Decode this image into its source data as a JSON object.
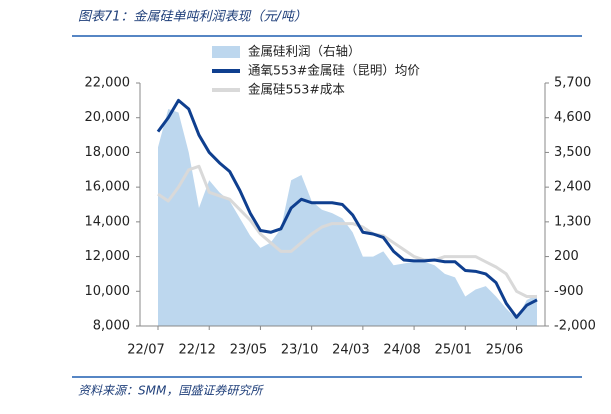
{
  "chart_data": {
    "type": "line",
    "title": "图表71：金属硅单吨利润表现（元/吨）",
    "source": "资料来源：SMM，国盛证券研究所",
    "categories": [
      "22/07",
      null,
      null,
      null,
      null,
      "22/12",
      null,
      null,
      null,
      null,
      "23/05",
      null,
      null,
      null,
      null,
      "23/10",
      null,
      null,
      null,
      null,
      "24/03",
      null,
      null,
      null,
      null,
      "24/08",
      null,
      null,
      null,
      null,
      "25/01",
      null,
      null,
      null,
      null,
      "25/06",
      null,
      null
    ],
    "series": [
      {
        "name": "金属硅利润（右轴）",
        "type": "area",
        "axis": "y2",
        "color": "#bdd7ee",
        "values": [
          3665,
          4875,
          4765,
          3500,
          1740,
          2620,
          2235,
          1960,
          1410,
          860,
          475,
          640,
          1080,
          2620,
          2785,
          1960,
          1685,
          1575,
          1410,
          970,
          200,
          200,
          365,
          -75,
          -20,
          35,
          35,
          -75,
          -350,
          -460,
          -1065,
          -845,
          -735,
          -1065,
          -1450,
          -1780,
          -1175,
          -1010
        ]
      },
      {
        "name": "通氧553#金属硅（昆明）均价",
        "type": "line",
        "color": "#0f3f8f",
        "values": [
          19200,
          20000,
          21000,
          20500,
          19000,
          18000,
          17400,
          16900,
          15800,
          14500,
          13500,
          13400,
          13600,
          14800,
          15300,
          15100,
          15100,
          15100,
          15000,
          14400,
          13400,
          13300,
          13100,
          12300,
          11800,
          11750,
          11750,
          11800,
          11700,
          11700,
          11200,
          11150,
          11000,
          10500,
          9300,
          8500,
          9200,
          9500
        ]
      },
      {
        "name": "金属硅553#成本",
        "type": "line",
        "color": "#d9d9d9",
        "values": [
          15600,
          15200,
          16000,
          17000,
          17200,
          15700,
          15500,
          15300,
          14700,
          14100,
          13300,
          12800,
          12300,
          12300,
          12800,
          13300,
          13700,
          13900,
          13900,
          13900,
          13700,
          13300,
          13200,
          12800,
          12400,
          12000,
          11800,
          11800,
          12000,
          12000,
          12000,
          12000,
          11700,
          11400,
          11000,
          10000,
          9700,
          9700
        ]
      }
    ],
    "ylim": [
      8000,
      22000
    ],
    "yticks": [
      {
        "value": 8000,
        "label": "8,000"
      },
      {
        "value": 10000,
        "label": "10,000"
      },
      {
        "value": 12000,
        "label": "12,000"
      },
      {
        "value": 14000,
        "label": "14,000"
      },
      {
        "value": 16000,
        "label": "16,000"
      },
      {
        "value": 18000,
        "label": "18,000"
      },
      {
        "value": 20000,
        "label": "20,000"
      },
      {
        "value": 22000,
        "label": "22,000"
      }
    ],
    "y2lim": [
      -2000,
      5700
    ],
    "y2ticks": [
      {
        "value": -2000,
        "label": "-2,000"
      },
      -900,
      200,
      {
        "value": 1300,
        "label": "1,300"
      },
      {
        "value": 2400,
        "label": "2,400"
      },
      {
        "value": 3500,
        "label": "3,500"
      },
      {
        "value": 4600,
        "label": "4,600"
      },
      {
        "value": 5700,
        "label": "5,700"
      }
    ],
    "legend": "top"
  }
}
